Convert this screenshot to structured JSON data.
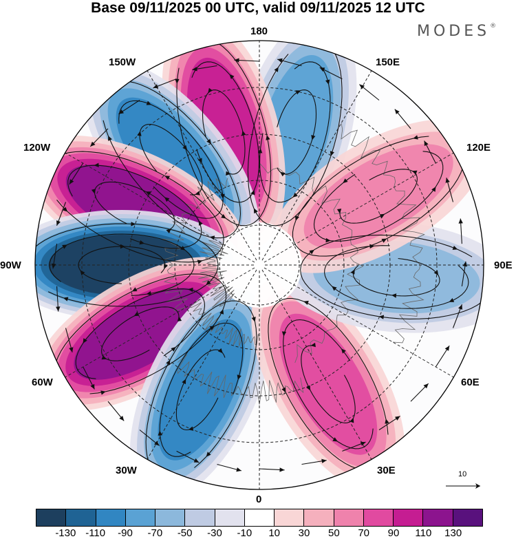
{
  "title": "Base 09/11/2025 00 UTC, valid 09/11/2025 12 UTC",
  "brand": {
    "name": "MODES",
    "mark": "®"
  },
  "longitude_labels": {
    "lon_180": "180",
    "lon_150e": "150E",
    "lon_120e": "120E",
    "lon_90e": "90E",
    "lon_60e": "60E",
    "lon_30e": "30E",
    "lon_0": "0",
    "lon_30w": "30W",
    "lon_60w": "60W",
    "lon_90w": "90W",
    "lon_120w": "120W",
    "lon_150w": "150W"
  },
  "reference_vector": {
    "label": "10"
  },
  "colorbar": {
    "colors": [
      "#1d3f5e",
      "#1f6394",
      "#3186c2",
      "#5aa2d4",
      "#8cb8dc",
      "#bfcbe3",
      "#e2e2ee",
      "#ffffff",
      "#f9d6d6",
      "#f5b0bd",
      "#ef82ac",
      "#e14aa0",
      "#c51d92",
      "#8c148e",
      "#59117d"
    ],
    "tick_labels": [
      "-130",
      "-110",
      "-90",
      "-70",
      "-50",
      "-30",
      "-10",
      "10",
      "30",
      "50",
      "70",
      "90",
      "110",
      "130"
    ]
  },
  "map_data": {
    "field": "height anomaly with wind vectors",
    "projection": "north polar stereographic",
    "anomaly_centers": [
      {
        "lon_deg": 165,
        "sign": -1,
        "value": -80
      },
      {
        "lon_deg": 195,
        "sign": 1,
        "value": 100
      },
      {
        "lon_deg": 220,
        "sign": -1,
        "value": -90
      },
      {
        "lon_deg": 245,
        "sign": 1,
        "value": 120
      },
      {
        "lon_deg": 270,
        "sign": -1,
        "value": -130
      },
      {
        "lon_deg": 300,
        "sign": 1,
        "value": 120
      },
      {
        "lon_deg": 335,
        "sign": -1,
        "value": -90
      },
      {
        "lon_deg": 30,
        "sign": 1,
        "value": 80
      },
      {
        "lon_deg": 85,
        "sign": -1,
        "value": -60
      },
      {
        "lon_deg": 120,
        "sign": 1,
        "value": 50
      }
    ]
  }
}
